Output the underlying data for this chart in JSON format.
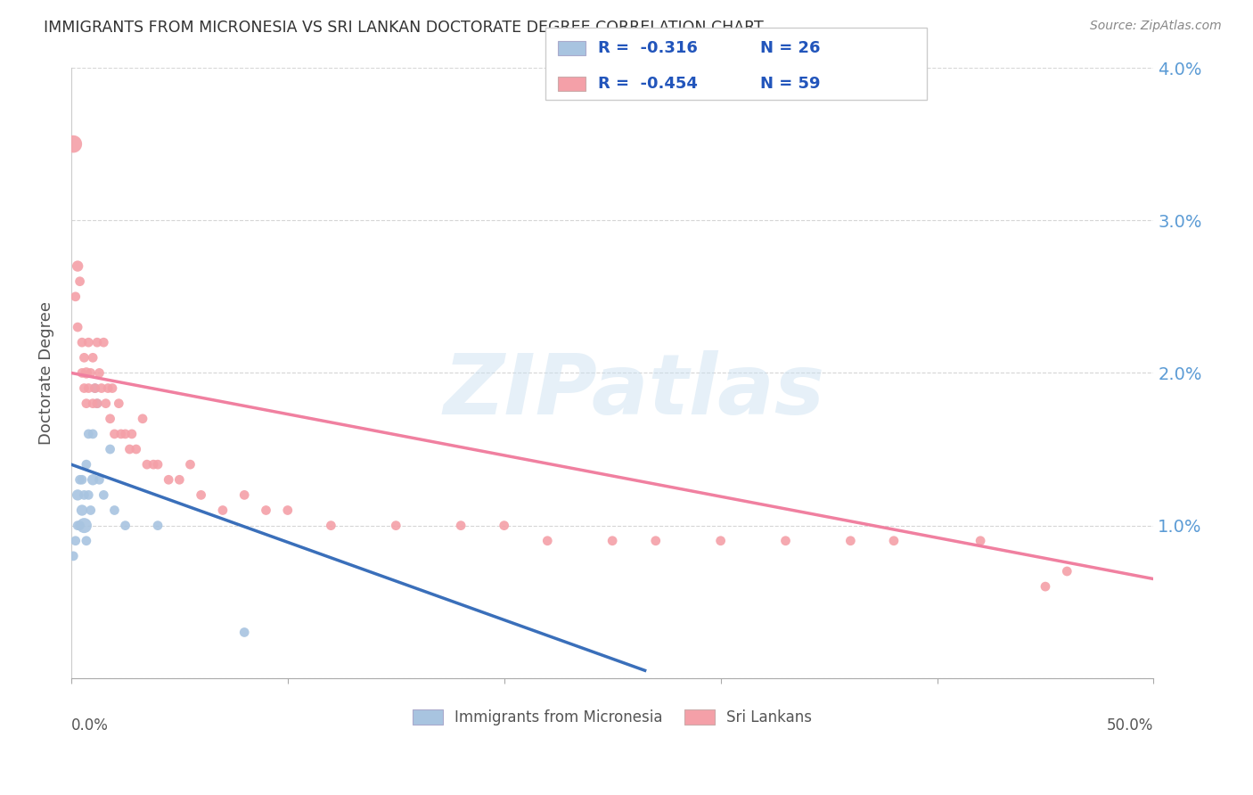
{
  "title": "IMMIGRANTS FROM MICRONESIA VS SRI LANKAN DOCTORATE DEGREE CORRELATION CHART",
  "source": "Source: ZipAtlas.com",
  "ylabel": "Doctorate Degree",
  "xlim": [
    0.0,
    0.5
  ],
  "ylim": [
    0.0,
    0.04
  ],
  "legend_blue_label": "Immigrants from Micronesia",
  "legend_pink_label": "Sri Lankans",
  "legend_blue_R": "R =  -0.316",
  "legend_blue_N": "N = 26",
  "legend_pink_R": "R =  -0.454",
  "legend_pink_N": "N = 59",
  "watermark": "ZIPatlas",
  "background_color": "#ffffff",
  "grid_color": "#cccccc",
  "right_axis_color": "#5b9bd5",
  "blue_dot_color": "#a8c4e0",
  "pink_dot_color": "#f4a0a8",
  "blue_line_color": "#3a6fba",
  "pink_line_color": "#f080a0",
  "blue_scatter_x": [
    0.001,
    0.002,
    0.003,
    0.003,
    0.004,
    0.004,
    0.005,
    0.005,
    0.006,
    0.006,
    0.007,
    0.007,
    0.008,
    0.008,
    0.009,
    0.01,
    0.01,
    0.011,
    0.012,
    0.013,
    0.015,
    0.018,
    0.02,
    0.025,
    0.04,
    0.08
  ],
  "blue_scatter_y": [
    0.008,
    0.009,
    0.01,
    0.012,
    0.01,
    0.013,
    0.011,
    0.013,
    0.01,
    0.012,
    0.009,
    0.014,
    0.012,
    0.016,
    0.011,
    0.013,
    0.016,
    0.019,
    0.018,
    0.013,
    0.012,
    0.015,
    0.011,
    0.01,
    0.01,
    0.003
  ],
  "blue_scatter_s": [
    60,
    60,
    60,
    80,
    60,
    60,
    80,
    60,
    150,
    60,
    60,
    60,
    60,
    60,
    60,
    80,
    60,
    60,
    60,
    60,
    60,
    60,
    60,
    60,
    60,
    60
  ],
  "pink_scatter_x": [
    0.001,
    0.002,
    0.003,
    0.003,
    0.004,
    0.005,
    0.005,
    0.006,
    0.006,
    0.007,
    0.007,
    0.008,
    0.008,
    0.009,
    0.01,
    0.01,
    0.011,
    0.012,
    0.012,
    0.013,
    0.014,
    0.015,
    0.016,
    0.017,
    0.018,
    0.019,
    0.02,
    0.022,
    0.023,
    0.025,
    0.027,
    0.028,
    0.03,
    0.033,
    0.035,
    0.038,
    0.04,
    0.045,
    0.05,
    0.055,
    0.06,
    0.07,
    0.08,
    0.09,
    0.1,
    0.12,
    0.15,
    0.18,
    0.2,
    0.22,
    0.25,
    0.27,
    0.3,
    0.33,
    0.36,
    0.38,
    0.42,
    0.45,
    0.46
  ],
  "pink_scatter_y": [
    0.035,
    0.025,
    0.027,
    0.023,
    0.026,
    0.02,
    0.022,
    0.019,
    0.021,
    0.02,
    0.018,
    0.022,
    0.019,
    0.02,
    0.021,
    0.018,
    0.019,
    0.022,
    0.018,
    0.02,
    0.019,
    0.022,
    0.018,
    0.019,
    0.017,
    0.019,
    0.016,
    0.018,
    0.016,
    0.016,
    0.015,
    0.016,
    0.015,
    0.017,
    0.014,
    0.014,
    0.014,
    0.013,
    0.013,
    0.014,
    0.012,
    0.011,
    0.012,
    0.011,
    0.011,
    0.01,
    0.01,
    0.01,
    0.01,
    0.009,
    0.009,
    0.009,
    0.009,
    0.009,
    0.009,
    0.009,
    0.009,
    0.006,
    0.007
  ],
  "pink_scatter_s": [
    200,
    60,
    80,
    60,
    60,
    60,
    60,
    60,
    60,
    80,
    60,
    60,
    60,
    60,
    60,
    60,
    60,
    60,
    60,
    60,
    60,
    60,
    60,
    60,
    60,
    60,
    60,
    60,
    60,
    60,
    60,
    60,
    60,
    60,
    60,
    60,
    60,
    60,
    60,
    60,
    60,
    60,
    60,
    60,
    60,
    60,
    60,
    60,
    60,
    60,
    60,
    60,
    60,
    60,
    60,
    60,
    60,
    60,
    60
  ],
  "blue_trendline_x": [
    0.0,
    0.265
  ],
  "blue_trendline_y": [
    0.014,
    0.0005
  ],
  "pink_trendline_x": [
    0.0,
    0.5
  ],
  "pink_trendline_y": [
    0.02,
    0.0065
  ]
}
